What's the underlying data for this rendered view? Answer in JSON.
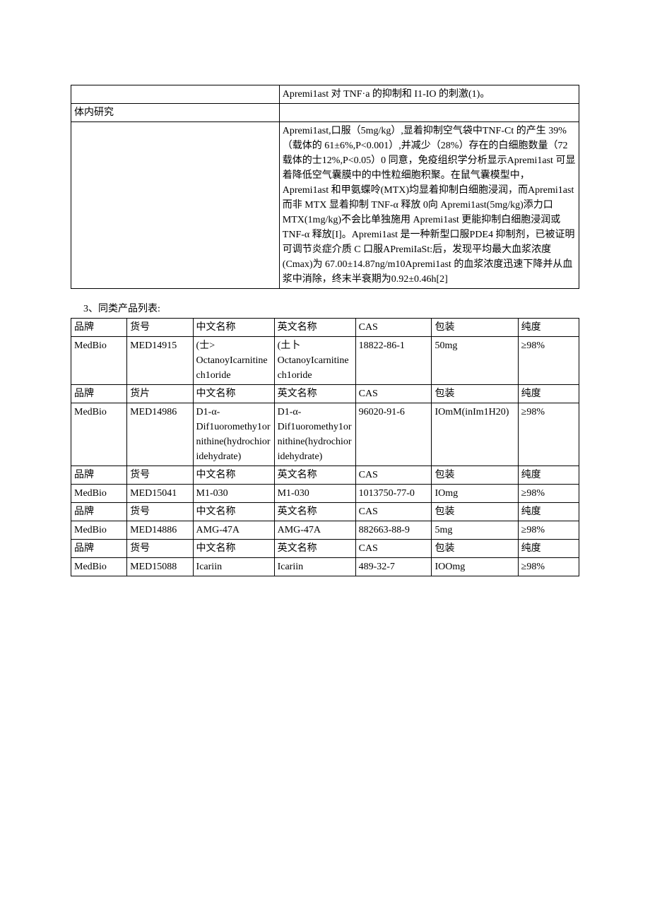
{
  "studyTable": {
    "row1_right": "Apremi1ast 对 TNF·a 的抑制和 I1-IO 的刺激(1)。",
    "row2_left": "体内研究",
    "row2_right": "",
    "row3_left": "",
    "row3_right": "Apremi1ast,口服（5mg/kg）,显着抑制空气袋中TNF-Ct 的产生 39%（载体的 61±6%,P<0.001）,并减少（28%）存在的白细胞数量（72 载体的士12%,P<0.05）0 同意，免疫组织学分析显示Apremi1ast 可显着降低空气囊膜中的中性粒细胞积聚。在鼠气囊模型中，Apremi1ast 和甲氨蝶呤(MTX)均显着抑制白细胞浸润，而Apremi1ast 而非 MTX 显着抑制 TNF-α 释放 0向 Apremi1ast(5mg/kg)添力口 MTX(1mg/kg)不会比单独施用 Apremi1ast 更能抑制白细胞浸润或 TNF-α 释放[I]。Apremi1ast 是一种新型口服PDE4 抑制剂，已被证明可调节炎症介质 C 口服APremiIaSt:后，发现平均最大血浆浓度(Cmax)为 67.00±14.87ng/m10Apremi1ast 的血浆浓度迅速下降并从血浆中消除，终末半衰期为0.92±0.46h[2]"
  },
  "sectionTitle": "3、同类产品列表:",
  "productTable": {
    "header_brand": "品牌",
    "header_code": "货号",
    "header_code_alt": "货片",
    "header_cn": "中文名称",
    "header_en": "英文名称",
    "header_cas": "CAS",
    "header_pkg": "包装",
    "header_purity": "纯度",
    "rows": [
      {
        "brand": "MedBio",
        "code": "MED14915",
        "cn": "(士>\nOctanoyIcarnitinech1oride",
        "en": "(土卜\nOctanoyIcarnitinech1oride",
        "cas": "18822-86-1",
        "pkg": "50mg",
        "purity": "≥98%"
      },
      {
        "brand": "MedBio",
        "code": "MED14986",
        "cn": "D1-α-Dif1uoromethy1ornithine(hydrochioridehydrate)",
        "en": "D1-α-Dif1uoromethy1ornithine(hydrochioridehydrate)",
        "cas": "96020-91-6",
        "pkg": "IOmM(inIm1H20)",
        "purity": "≥98%"
      },
      {
        "brand": "MedBio",
        "code": "MED15041",
        "cn": "M1-030",
        "en": "M1-030",
        "cas": "1013750-77-0",
        "pkg": "IOmg",
        "purity": "≥98%"
      },
      {
        "brand": "MedBio",
        "code": "MED14886",
        "cn": "AMG-47A",
        "en": "AMG-47A",
        "cas": "882663-88-9",
        "pkg": "5mg",
        "purity": "≥98%"
      },
      {
        "brand": "MedBio",
        "code": "MED15088",
        "cn": "Icariin",
        "en": "Icariin",
        "cas": "489-32-7",
        "pkg": "IOOmg",
        "purity": "≥98%"
      }
    ]
  }
}
